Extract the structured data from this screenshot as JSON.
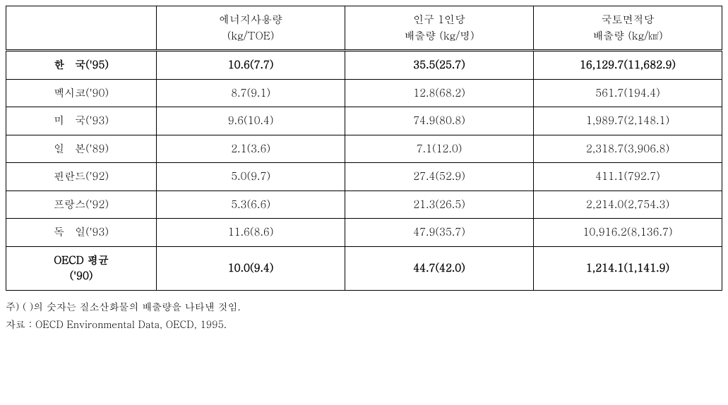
{
  "table": {
    "background_color": "#ffffff",
    "border_color": "#000000",
    "text_color": "#000000",
    "font_size": 15,
    "columns": [
      {
        "label_line1": "",
        "label_line2": ""
      },
      {
        "label_line1": "에너지사용량",
        "label_line2": "(kg/TOE)"
      },
      {
        "label_line1": "인구 1인당",
        "label_line2": "배출량 (kg/명)"
      },
      {
        "label_line1": "국토면적당",
        "label_line2": "배출량 (kg/㎢)"
      }
    ],
    "rows": [
      {
        "bold": true,
        "country": "한　국('95)",
        "energy": "10.6(7.7)",
        "per_capita": "35.5(25.7)",
        "per_area": "16,129.7(11,682.9)"
      },
      {
        "bold": false,
        "country": "멕시코('90)",
        "energy": "8.7(9.1)",
        "per_capita": "12.8(68.2)",
        "per_area": "561.7(194.4)"
      },
      {
        "bold": false,
        "country": "미　국('93)",
        "energy": "9.6(10.4)",
        "per_capita": "74.9(80.8)",
        "per_area": "1,989.7(2,148.1)"
      },
      {
        "bold": false,
        "country": "일　본('89)",
        "energy": "2.1(3.6)",
        "per_capita": "7.1(12.0)",
        "per_area": "2,318.7(3,906.8)"
      },
      {
        "bold": false,
        "country": "핀란드('92)",
        "energy": "5.0(9.7)",
        "per_capita": "27.4(52.9)",
        "per_area": "411.1(792.7)"
      },
      {
        "bold": false,
        "country": "프랑스('92)",
        "energy": "5.3(6.6)",
        "per_capita": "21.3(26.5)",
        "per_area": "2,214.0(2,754.3)"
      },
      {
        "bold": false,
        "country": "독　일('93)",
        "energy": "11.6(8.6)",
        "per_capita": "47.9(35.7)",
        "per_area": "10,916.2(8,136.7)"
      },
      {
        "bold": true,
        "country": "OECD 평균\n('90)",
        "energy": "10.0(9.4)",
        "per_capita": "44.7(42.0)",
        "per_area": "1,214.1(1,141.9)"
      }
    ]
  },
  "footnotes": {
    "note1": "주) ( )의 숫자는 질소산화물의 배출량을 나타낸 것임.",
    "note2": "자료 : OECD Environmental Data, OECD, 1995."
  }
}
